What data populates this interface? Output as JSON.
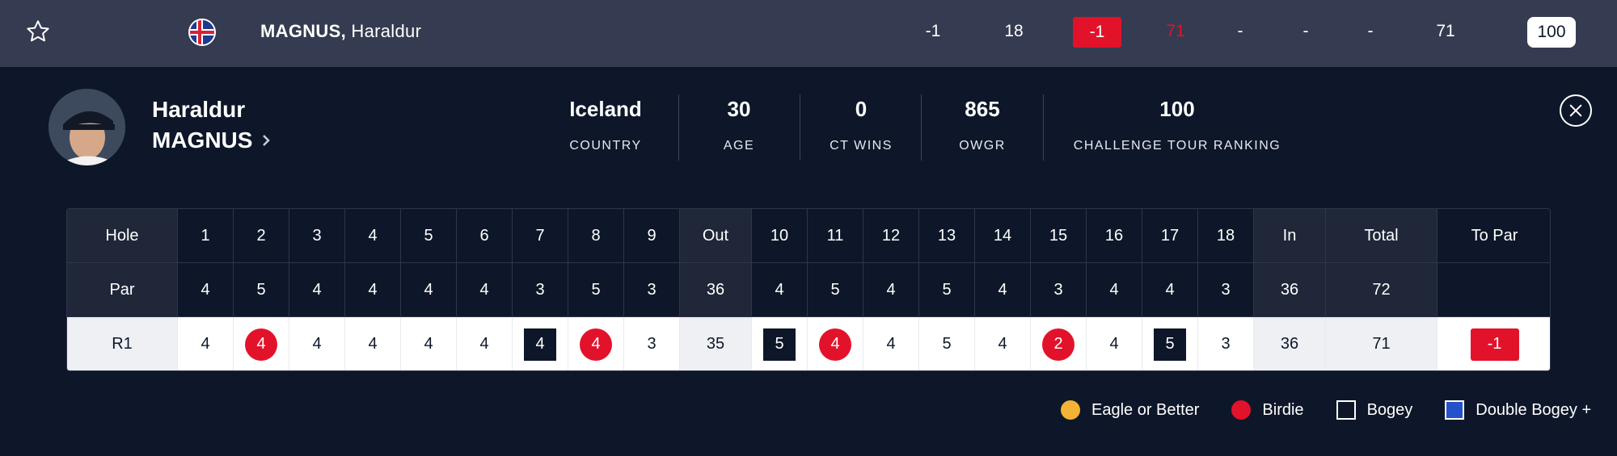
{
  "top_row": {
    "last_name": "MAGNUS,",
    "first_name": "Haraldur",
    "values": [
      "-1",
      "18",
      "-1",
      "71",
      "-",
      "-",
      "-",
      "71",
      "100"
    ],
    "colors": {
      "background": "#353b50",
      "red": "#e3122b"
    }
  },
  "profile": {
    "first_name": "Haraldur",
    "last_name": "MAGNUS",
    "stats": [
      {
        "value": "Iceland",
        "label": "COUNTRY"
      },
      {
        "value": "30",
        "label": "AGE"
      },
      {
        "value": "0",
        "label": "CT WINS"
      },
      {
        "value": "865",
        "label": "OWGR"
      },
      {
        "value": "100",
        "label": "CHALLENGE TOUR RANKING"
      }
    ]
  },
  "scorecard": {
    "header": [
      "Hole",
      "1",
      "2",
      "3",
      "4",
      "5",
      "6",
      "7",
      "8",
      "9",
      "Out",
      "10",
      "11",
      "12",
      "13",
      "14",
      "15",
      "16",
      "17",
      "18",
      "In",
      "Total",
      "To Par"
    ],
    "par": [
      "Par",
      "4",
      "5",
      "4",
      "4",
      "4",
      "4",
      "3",
      "5",
      "3",
      "36",
      "4",
      "5",
      "4",
      "5",
      "4",
      "3",
      "4",
      "4",
      "3",
      "36",
      "72",
      ""
    ],
    "r1": [
      "R1",
      "4",
      "4",
      "4",
      "4",
      "4",
      "4",
      "4",
      "4",
      "3",
      "35",
      "5",
      "4",
      "4",
      "5",
      "4",
      "2",
      "4",
      "5",
      "3",
      "36",
      "71",
      "-1"
    ],
    "r1_marks": [
      "",
      "",
      "birdie",
      "",
      "",
      "",
      "",
      "bogey",
      "birdie",
      "",
      "",
      "bogey",
      "birdie",
      "",
      "",
      "",
      "birdie",
      "",
      "bogey",
      "",
      "",
      "",
      "topar"
    ]
  },
  "legend": [
    {
      "label": "Eagle or Better",
      "color": "#f5b335",
      "shape": "circle"
    },
    {
      "label": "Birdie",
      "color": "#e3122b",
      "shape": "circle"
    },
    {
      "label": "Bogey",
      "color": "#0e1729",
      "shape": "square"
    },
    {
      "label": "Double Bogey +",
      "color": "#2551c9",
      "shape": "square"
    }
  ],
  "icons": {
    "favorite": "star-icon",
    "flag": "iceland-flag-icon",
    "close": "close-icon",
    "chevron": "chevron-right-icon"
  }
}
